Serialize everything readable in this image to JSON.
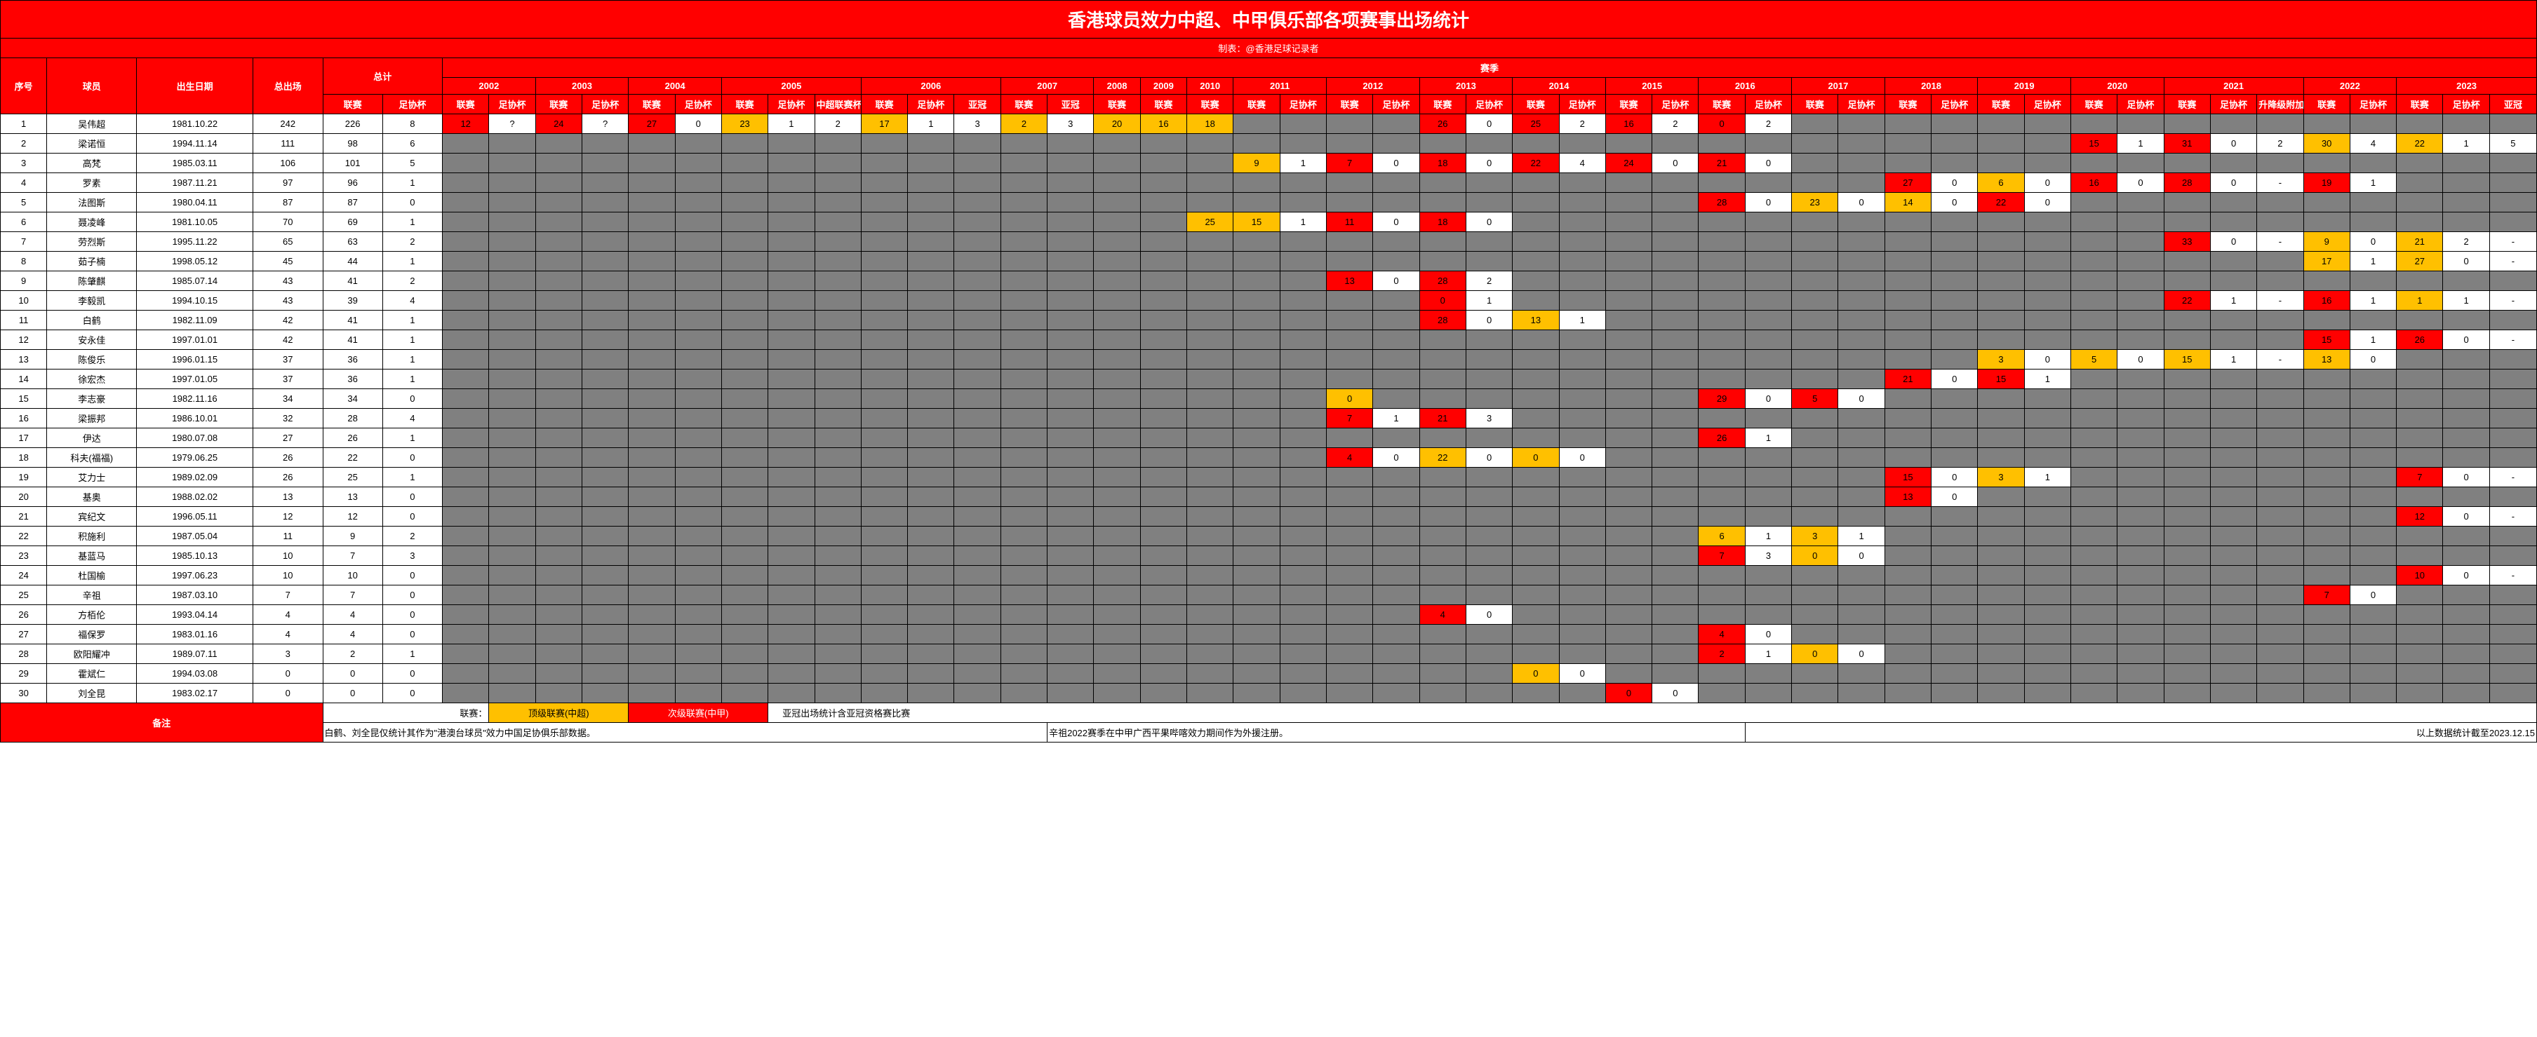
{
  "title": "香港球员效力中超、中甲俱乐部各项赛事出场统计",
  "subtitle": "制表：@香港足球记录者",
  "labels": {
    "idx": "序号",
    "player": "球员",
    "dob": "出生日期",
    "total": "总出场",
    "sum": "总计",
    "season": "赛季",
    "league": "联赛",
    "cup": "足协杯",
    "supercup": "中超联赛杯",
    "acl": "亚冠",
    "playoff": "升降级附加赛",
    "remark": "备注"
  },
  "years": [
    {
      "y": "2002",
      "cols": [
        "联赛",
        "足协杯"
      ]
    },
    {
      "y": "2003",
      "cols": [
        "联赛",
        "足协杯"
      ]
    },
    {
      "y": "2004",
      "cols": [
        "联赛",
        "足协杯"
      ]
    },
    {
      "y": "2005",
      "cols": [
        "联赛",
        "足协杯",
        "中超联赛杯"
      ]
    },
    {
      "y": "2006",
      "cols": [
        "联赛",
        "足协杯",
        "亚冠"
      ]
    },
    {
      "y": "2007",
      "cols": [
        "联赛",
        "亚冠"
      ]
    },
    {
      "y": "2008",
      "cols": [
        "联赛"
      ]
    },
    {
      "y": "2009",
      "cols": [
        "联赛"
      ]
    },
    {
      "y": "2010",
      "cols": [
        "联赛"
      ]
    },
    {
      "y": "2011",
      "cols": [
        "联赛",
        "足协杯"
      ]
    },
    {
      "y": "2012",
      "cols": [
        "联赛",
        "足协杯"
      ]
    },
    {
      "y": "2013",
      "cols": [
        "联赛",
        "足协杯"
      ]
    },
    {
      "y": "2014",
      "cols": [
        "联赛",
        "足协杯"
      ]
    },
    {
      "y": "2015",
      "cols": [
        "联赛",
        "足协杯"
      ]
    },
    {
      "y": "2016",
      "cols": [
        "联赛",
        "足协杯"
      ]
    },
    {
      "y": "2017",
      "cols": [
        "联赛",
        "足协杯"
      ]
    },
    {
      "y": "2018",
      "cols": [
        "联赛",
        "足协杯"
      ]
    },
    {
      "y": "2019",
      "cols": [
        "联赛",
        "足协杯"
      ]
    },
    {
      "y": "2020",
      "cols": [
        "联赛",
        "足协杯"
      ]
    },
    {
      "y": "2021",
      "cols": [
        "联赛",
        "足协杯",
        "升降级附加赛"
      ]
    },
    {
      "y": "2022",
      "cols": [
        "联赛",
        "足协杯"
      ]
    },
    {
      "y": "2023",
      "cols": [
        "联赛",
        "足协杯",
        "亚冠"
      ]
    }
  ],
  "players": [
    {
      "n": 1,
      "name": "吴伟超",
      "dob": "1981.10.22",
      "total": 242,
      "lg": 226,
      "cp": 8,
      "cells": {
        "2002-0": {
          "t": "12",
          "c": "r"
        },
        "2002-1": {
          "t": "?",
          "c": "w"
        },
        "2003-0": {
          "t": "24",
          "c": "r"
        },
        "2003-1": {
          "t": "?",
          "c": "w"
        },
        "2004-0": {
          "t": "27",
          "c": "r"
        },
        "2004-1": {
          "t": "0",
          "c": "w"
        },
        "2005-0": {
          "t": "23",
          "c": "o"
        },
        "2005-1": {
          "t": "1",
          "c": "w"
        },
        "2005-2": {
          "t": "2",
          "c": "w"
        },
        "2006-0": {
          "t": "17",
          "c": "o"
        },
        "2006-1": {
          "t": "1",
          "c": "w"
        },
        "2006-2": {
          "t": "3",
          "c": "w"
        },
        "2007-0": {
          "t": "2",
          "c": "o"
        },
        "2007-1": {
          "t": "3",
          "c": "w"
        },
        "2008-0": {
          "t": "20",
          "c": "o"
        },
        "2009-0": {
          "t": "16",
          "c": "o"
        },
        "2010-0": {
          "t": "18",
          "c": "o"
        },
        "2013-0": {
          "t": "26",
          "c": "r"
        },
        "2013-1": {
          "t": "0",
          "c": "w"
        },
        "2014-0": {
          "t": "25",
          "c": "r"
        },
        "2014-1": {
          "t": "2",
          "c": "w"
        },
        "2015-0": {
          "t": "16",
          "c": "r"
        },
        "2015-1": {
          "t": "2",
          "c": "w"
        },
        "2016-0": {
          "t": "0",
          "c": "r"
        },
        "2016-1": {
          "t": "2",
          "c": "w"
        }
      }
    },
    {
      "n": 2,
      "name": "梁诺恒",
      "dob": "1994.11.14",
      "total": 111,
      "lg": 98,
      "cp": 6,
      "cells": {
        "2020-0": {
          "t": "15",
          "c": "r"
        },
        "2020-1": {
          "t": "1",
          "c": "w"
        },
        "2021-0": {
          "t": "31",
          "c": "r"
        },
        "2021-1": {
          "t": "0",
          "c": "w"
        },
        "2021-2": {
          "t": "2",
          "c": "w"
        },
        "2022-0": {
          "t": "30",
          "c": "o"
        },
        "2022-1": {
          "t": "4",
          "c": "w"
        },
        "2023-0": {
          "t": "22",
          "c": "o"
        },
        "2023-1": {
          "t": "1",
          "c": "w"
        },
        "2023-2": {
          "t": "5",
          "c": "w"
        }
      }
    },
    {
      "n": 3,
      "name": "高梵",
      "dob": "1985.03.11",
      "total": 106,
      "lg": 101,
      "cp": 5,
      "cells": {
        "2011-0": {
          "t": "9",
          "c": "o"
        },
        "2011-1": {
          "t": "1",
          "c": "w"
        },
        "2012-0": {
          "t": "7",
          "c": "r"
        },
        "2012-1": {
          "t": "0",
          "c": "w"
        },
        "2013-0": {
          "t": "18",
          "c": "r"
        },
        "2013-1": {
          "t": "0",
          "c": "w"
        },
        "2014-0": {
          "t": "22",
          "c": "r"
        },
        "2014-1": {
          "t": "4",
          "c": "w"
        },
        "2015-0": {
          "t": "24",
          "c": "r"
        },
        "2015-1": {
          "t": "0",
          "c": "w"
        },
        "2016-0": {
          "t": "21",
          "c": "r"
        },
        "2016-1": {
          "t": "0",
          "c": "w"
        }
      }
    },
    {
      "n": 4,
      "name": "罗素",
      "dob": "1987.11.21",
      "total": 97,
      "lg": 96,
      "cp": 1,
      "cells": {
        "2018-0": {
          "t": "27",
          "c": "r"
        },
        "2018-1": {
          "t": "0",
          "c": "w"
        },
        "2019-0": {
          "t": "6",
          "c": "o"
        },
        "2019-1": {
          "t": "0",
          "c": "w"
        },
        "2020-0": {
          "t": "16",
          "c": "r"
        },
        "2020-1": {
          "t": "0",
          "c": "w"
        },
        "2021-0": {
          "t": "28",
          "c": "r"
        },
        "2021-1": {
          "t": "0",
          "c": "w"
        },
        "2021-2": {
          "t": "-",
          "c": "w"
        },
        "2022-0": {
          "t": "19",
          "c": "r"
        },
        "2022-1": {
          "t": "1",
          "c": "w"
        }
      }
    },
    {
      "n": 5,
      "name": "法图斯",
      "dob": "1980.04.11",
      "total": 87,
      "lg": 87,
      "cp": 0,
      "cells": {
        "2016-0": {
          "t": "28",
          "c": "r"
        },
        "2016-1": {
          "t": "0",
          "c": "w"
        },
        "2017-0": {
          "t": "23",
          "c": "o"
        },
        "2017-1": {
          "t": "0",
          "c": "w"
        },
        "2018-0": {
          "t": "14",
          "c": "o"
        },
        "2018-1": {
          "t": "0",
          "c": "w"
        },
        "2019-0": {
          "t": "22",
          "c": "r"
        },
        "2019-1": {
          "t": "0",
          "c": "w"
        }
      }
    },
    {
      "n": 6,
      "name": "聂凌峰",
      "dob": "1981.10.05",
      "total": 70,
      "lg": 69,
      "cp": 1,
      "cells": {
        "2010-0": {
          "t": "25",
          "c": "o"
        },
        "2011-0": {
          "t": "15",
          "c": "o"
        },
        "2011-1": {
          "t": "1",
          "c": "w"
        },
        "2012-0": {
          "t": "11",
          "c": "r"
        },
        "2012-1": {
          "t": "0",
          "c": "w"
        },
        "2013-0": {
          "t": "18",
          "c": "r"
        },
        "2013-1": {
          "t": "0",
          "c": "w"
        }
      }
    },
    {
      "n": 7,
      "name": "劳烈斯",
      "dob": "1995.11.22",
      "total": 65,
      "lg": 63,
      "cp": 2,
      "cells": {
        "2021-0": {
          "t": "33",
          "c": "r"
        },
        "2021-1": {
          "t": "0",
          "c": "w"
        },
        "2021-2": {
          "t": "-",
          "c": "w"
        },
        "2022-0": {
          "t": "9",
          "c": "o"
        },
        "2022-1": {
          "t": "0",
          "c": "w"
        },
        "2023-0": {
          "t": "21",
          "c": "o"
        },
        "2023-1": {
          "t": "2",
          "c": "w"
        },
        "2023-2": {
          "t": "-",
          "c": "w"
        }
      }
    },
    {
      "n": 8,
      "name": "茹子楠",
      "dob": "1998.05.12",
      "total": 45,
      "lg": 44,
      "cp": 1,
      "cells": {
        "2022-0": {
          "t": "17",
          "c": "o"
        },
        "2022-1": {
          "t": "1",
          "c": "w"
        },
        "2023-0": {
          "t": "27",
          "c": "o"
        },
        "2023-1": {
          "t": "0",
          "c": "w"
        },
        "2023-2": {
          "t": "-",
          "c": "w"
        }
      }
    },
    {
      "n": 9,
      "name": "陈肇麒",
      "dob": "1985.07.14",
      "total": 43,
      "lg": 41,
      "cp": 2,
      "cells": {
        "2012-0": {
          "t": "13",
          "c": "r"
        },
        "2012-1": {
          "t": "0",
          "c": "w"
        },
        "2013-0": {
          "t": "28",
          "c": "r"
        },
        "2013-1": {
          "t": "2",
          "c": "w"
        }
      }
    },
    {
      "n": 10,
      "name": "李毅凯",
      "dob": "1994.10.15",
      "total": 43,
      "lg": 39,
      "cp": 4,
      "cells": {
        "2013-0": {
          "t": "0",
          "c": "r"
        },
        "2013-1": {
          "t": "1",
          "c": "w"
        },
        "2021-0": {
          "t": "22",
          "c": "r"
        },
        "2021-1": {
          "t": "1",
          "c": "w"
        },
        "2021-2": {
          "t": "-",
          "c": "w"
        },
        "2022-0": {
          "t": "16",
          "c": "r"
        },
        "2022-1": {
          "t": "1",
          "c": "w"
        },
        "2023-0": {
          "t": "1",
          "c": "o"
        },
        "2023-1": {
          "t": "1",
          "c": "w"
        },
        "2023-2": {
          "t": "-",
          "c": "w"
        }
      }
    },
    {
      "n": 11,
      "name": "白鹤",
      "dob": "1982.11.09",
      "total": 42,
      "lg": 41,
      "cp": 1,
      "cells": {
        "2013-0": {
          "t": "28",
          "c": "r"
        },
        "2013-1": {
          "t": "0",
          "c": "w"
        },
        "2014-0": {
          "t": "13",
          "c": "o"
        },
        "2014-1": {
          "t": "1",
          "c": "w"
        }
      }
    },
    {
      "n": 12,
      "name": "安永佳",
      "dob": "1997.01.01",
      "total": 42,
      "lg": 41,
      "cp": 1,
      "cells": {
        "2022-0": {
          "t": "15",
          "c": "r"
        },
        "2022-1": {
          "t": "1",
          "c": "w"
        },
        "2023-0": {
          "t": "26",
          "c": "r"
        },
        "2023-1": {
          "t": "0",
          "c": "w"
        },
        "2023-2": {
          "t": "-",
          "c": "w"
        }
      }
    },
    {
      "n": 13,
      "name": "陈俊乐",
      "dob": "1996.01.15",
      "total": 37,
      "lg": 36,
      "cp": 1,
      "cells": {
        "2019-0": {
          "t": "3",
          "c": "o"
        },
        "2019-1": {
          "t": "0",
          "c": "w"
        },
        "2020-0": {
          "t": "5",
          "c": "o"
        },
        "2020-1": {
          "t": "0",
          "c": "w"
        },
        "2021-0": {
          "t": "15",
          "c": "o"
        },
        "2021-1": {
          "t": "1",
          "c": "w"
        },
        "2021-2": {
          "t": "-",
          "c": "w"
        },
        "2022-0": {
          "t": "13",
          "c": "o"
        },
        "2022-1": {
          "t": "0",
          "c": "w"
        }
      }
    },
    {
      "n": 14,
      "name": "徐宏杰",
      "dob": "1997.01.05",
      "total": 37,
      "lg": 36,
      "cp": 1,
      "cells": {
        "2018-0": {
          "t": "21",
          "c": "r"
        },
        "2018-1": {
          "t": "0",
          "c": "w"
        },
        "2019-0": {
          "t": "15",
          "c": "r"
        },
        "2019-1": {
          "t": "1",
          "c": "w"
        }
      }
    },
    {
      "n": 15,
      "name": "李志豪",
      "dob": "1982.11.16",
      "total": 34,
      "lg": 34,
      "cp": 0,
      "cells": {
        "2012-0": {
          "t": "0",
          "c": "o"
        },
        "2016-0": {
          "t": "29",
          "c": "r"
        },
        "2016-1": {
          "t": "0",
          "c": "w"
        },
        "2017-0": {
          "t": "5",
          "c": "r"
        },
        "2017-1": {
          "t": "0",
          "c": "w"
        }
      }
    },
    {
      "n": 16,
      "name": "梁振邦",
      "dob": "1986.10.01",
      "total": 32,
      "lg": 28,
      "cp": 4,
      "cells": {
        "2012-0": {
          "t": "7",
          "c": "r"
        },
        "2012-1": {
          "t": "1",
          "c": "w"
        },
        "2013-0": {
          "t": "21",
          "c": "r"
        },
        "2013-1": {
          "t": "3",
          "c": "w"
        }
      }
    },
    {
      "n": 17,
      "name": "伊达",
      "dob": "1980.07.08",
      "total": 27,
      "lg": 26,
      "cp": 1,
      "cells": {
        "2016-0": {
          "t": "26",
          "c": "r"
        },
        "2016-1": {
          "t": "1",
          "c": "w"
        }
      }
    },
    {
      "n": 18,
      "name": "科夫(福福)",
      "dob": "1979.06.25",
      "total": 26,
      "lg": 22,
      "cp": 0,
      "cells": {
        "2012-0": {
          "t": "4",
          "c": "r"
        },
        "2012-1": {
          "t": "0",
          "c": "w"
        },
        "2013-0": {
          "t": "22",
          "c": "o"
        },
        "2013-1": {
          "t": "0",
          "c": "w"
        },
        "2014-0": {
          "t": "0",
          "c": "o"
        },
        "2014-1": {
          "t": "0",
          "c": "w"
        }
      }
    },
    {
      "n": 19,
      "name": "艾力士",
      "dob": "1989.02.09",
      "total": 26,
      "lg": 25,
      "cp": 1,
      "cells": {
        "2018-0": {
          "t": "15",
          "c": "r"
        },
        "2018-1": {
          "t": "0",
          "c": "w"
        },
        "2019-0": {
          "t": "3",
          "c": "o"
        },
        "2019-1": {
          "t": "1",
          "c": "w"
        },
        "2023-0": {
          "t": "7",
          "c": "r"
        },
        "2023-1": {
          "t": "0",
          "c": "w"
        },
        "2023-2": {
          "t": "-",
          "c": "w"
        }
      }
    },
    {
      "n": 20,
      "name": "基奥",
      "dob": "1988.02.02",
      "total": 13,
      "lg": 13,
      "cp": 0,
      "cells": {
        "2018-0": {
          "t": "13",
          "c": "r"
        },
        "2018-1": {
          "t": "0",
          "c": "w"
        }
      }
    },
    {
      "n": 21,
      "name": "宾纪文",
      "dob": "1996.05.11",
      "total": 12,
      "lg": 12,
      "cp": 0,
      "cells": {
        "2023-0": {
          "t": "12",
          "c": "r"
        },
        "2023-1": {
          "t": "0",
          "c": "w"
        },
        "2023-2": {
          "t": "-",
          "c": "w"
        }
      }
    },
    {
      "n": 22,
      "name": "积施利",
      "dob": "1987.05.04",
      "total": 11,
      "lg": 9,
      "cp": 2,
      "cells": {
        "2016-0": {
          "t": "6",
          "c": "o"
        },
        "2016-1": {
          "t": "1",
          "c": "w"
        },
        "2017-0": {
          "t": "3",
          "c": "o"
        },
        "2017-1": {
          "t": "1",
          "c": "w"
        }
      }
    },
    {
      "n": 23,
      "name": "基蓝马",
      "dob": "1985.10.13",
      "total": 10,
      "lg": 7,
      "cp": 3,
      "cells": {
        "2016-0": {
          "t": "7",
          "c": "r"
        },
        "2016-1": {
          "t": "3",
          "c": "w"
        },
        "2017-0": {
          "t": "0",
          "c": "o"
        },
        "2017-1": {
          "t": "0",
          "c": "w"
        }
      }
    },
    {
      "n": 24,
      "name": "杜国榆",
      "dob": "1997.06.23",
      "total": 10,
      "lg": 10,
      "cp": 0,
      "cells": {
        "2023-0": {
          "t": "10",
          "c": "r"
        },
        "2023-1": {
          "t": "0",
          "c": "w"
        },
        "2023-2": {
          "t": "-",
          "c": "w"
        }
      }
    },
    {
      "n": 25,
      "name": "辛祖",
      "dob": "1987.03.10",
      "total": 7,
      "lg": 7,
      "cp": 0,
      "cells": {
        "2022-0": {
          "t": "7",
          "c": "r"
        },
        "2022-1": {
          "t": "0",
          "c": "w"
        }
      }
    },
    {
      "n": 26,
      "name": "方栢伦",
      "dob": "1993.04.14",
      "total": 4,
      "lg": 4,
      "cp": 0,
      "cells": {
        "2013-0": {
          "t": "4",
          "c": "r"
        },
        "2013-1": {
          "t": "0",
          "c": "w"
        }
      }
    },
    {
      "n": 27,
      "name": "福保罗",
      "dob": "1983.01.16",
      "total": 4,
      "lg": 4,
      "cp": 0,
      "cells": {
        "2016-0": {
          "t": "4",
          "c": "r"
        },
        "2016-1": {
          "t": "0",
          "c": "w"
        }
      }
    },
    {
      "n": 28,
      "name": "欧阳耀冲",
      "dob": "1989.07.11",
      "total": 3,
      "lg": 2,
      "cp": 1,
      "cells": {
        "2016-0": {
          "t": "2",
          "c": "r"
        },
        "2016-1": {
          "t": "1",
          "c": "w"
        },
        "2017-0": {
          "t": "0",
          "c": "o"
        },
        "2017-1": {
          "t": "0",
          "c": "w"
        }
      }
    },
    {
      "n": 29,
      "name": "霍斌仁",
      "dob": "1994.03.08",
      "total": 0,
      "lg": 0,
      "cp": 0,
      "cells": {
        "2014-0": {
          "t": "0",
          "c": "o"
        },
        "2014-1": {
          "t": "0",
          "c": "w"
        }
      }
    },
    {
      "n": 30,
      "name": "刘全昆",
      "dob": "1983.02.17",
      "total": 0,
      "lg": 0,
      "cp": 0,
      "cells": {
        "2015-0": {
          "t": "0",
          "c": "r"
        },
        "2015-1": {
          "t": "0",
          "c": "w"
        }
      }
    }
  ],
  "footer": {
    "legend_label": "联赛：",
    "csl": "顶级联赛(中超)",
    "cl1": "次级联赛(中甲)",
    "acl_note": "亚冠出场统计含亚冠资格赛比赛",
    "note1": "白鹤、刘全昆仅统计其作为\"港澳台球员\"效力中国足协俱乐部数据。",
    "note2": "辛祖2022赛季在中甲广西平果哔喀效力期间作为外援注册。",
    "note3": "以上数据统计截至2023.12.15"
  }
}
